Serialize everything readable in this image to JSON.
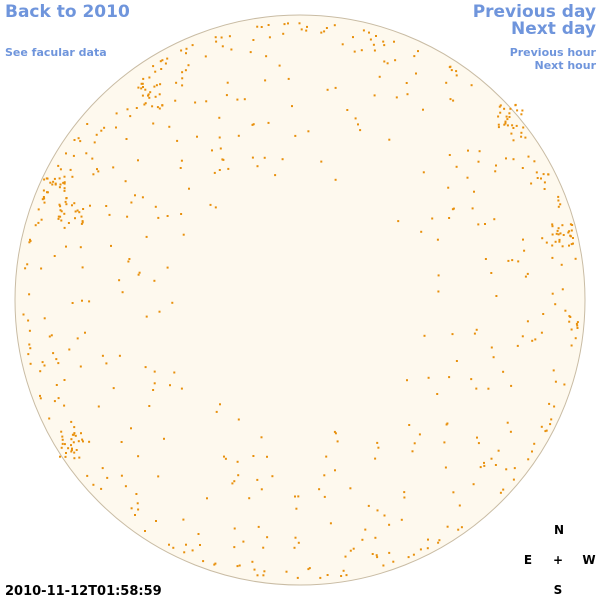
{
  "links": {
    "back": "Back to 2010",
    "facular": "See facular data",
    "previous_day": "Previous day",
    "next_day": "Next day",
    "previous_hour": "Previous hour",
    "next_hour": "Next hour"
  },
  "timestamp": "2010-11-12T01:58:59",
  "compass": {
    "north": "N",
    "east": "E",
    "center": "+",
    "west": "W",
    "south": "S"
  }
}
